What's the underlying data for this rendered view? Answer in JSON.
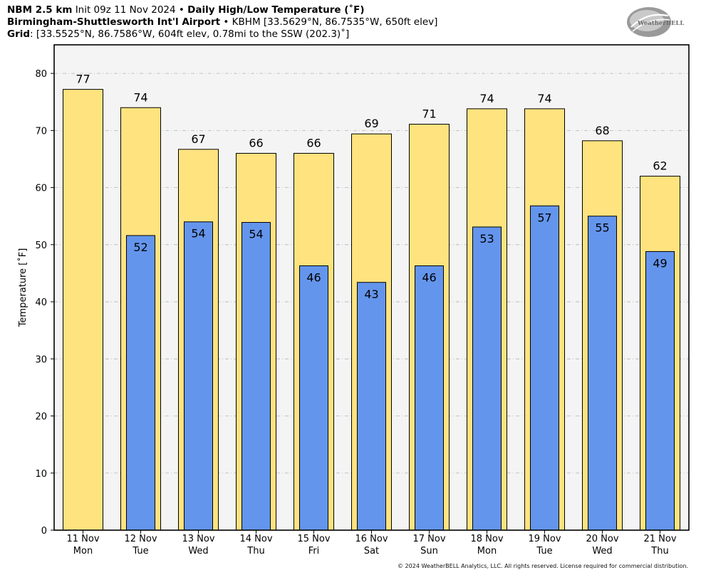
{
  "header": {
    "line1_model": "NBM 2.5 km",
    "line1_init": "Init 09z 11 Nov 2024",
    "line1_sep": "•",
    "line1_product": "Daily High/Low Temperature (˚F)",
    "line2_site": "Birmingham-Shuttlesworth Int'l Airport",
    "line2_sep": "•",
    "line2_info": "KBHM [33.5629°N, 86.7535°W, 650ft elev]",
    "line3_label": "Grid",
    "line3_info": ": [33.5525°N, 86.7586°W, 604ft elev, 0.78mi to the SSW (202.3)˚]"
  },
  "logo": {
    "text": "WeatherBELL"
  },
  "copyright": "© 2024 WeatherBELL Analytics, LLC. All rights reserved. License required for commercial distribution.",
  "chart_data": {
    "type": "bar",
    "title": "Daily High/Low Temperature (˚F)",
    "ylabel": "Temperature [˚F]",
    "xlabel": "",
    "ylim": [
      0,
      85
    ],
    "yticks": [
      0,
      10,
      20,
      30,
      40,
      50,
      60,
      70,
      80
    ],
    "grid": true,
    "categories": [
      {
        "date": "11 Nov",
        "day": "Mon"
      },
      {
        "date": "12 Nov",
        "day": "Tue"
      },
      {
        "date": "13 Nov",
        "day": "Wed"
      },
      {
        "date": "14 Nov",
        "day": "Thu"
      },
      {
        "date": "15 Nov",
        "day": "Fri"
      },
      {
        "date": "16 Nov",
        "day": "Sat"
      },
      {
        "date": "17 Nov",
        "day": "Sun"
      },
      {
        "date": "18 Nov",
        "day": "Mon"
      },
      {
        "date": "19 Nov",
        "day": "Tue"
      },
      {
        "date": "20 Nov",
        "day": "Wed"
      },
      {
        "date": "21 Nov",
        "day": "Thu"
      }
    ],
    "series": [
      {
        "key": "high",
        "color": "#FFE37F",
        "values": [
          77.2,
          74,
          66.7,
          66,
          66,
          69.4,
          71.1,
          73.8,
          73.8,
          68.2,
          62
        ],
        "labels": [
          "77",
          "74",
          "67",
          "66",
          "66",
          "69",
          "71",
          "74",
          "74",
          "68",
          "62"
        ]
      },
      {
        "key": "low",
        "color": "#6495ED",
        "values": [
          null,
          51.6,
          54,
          53.9,
          46.3,
          43.4,
          46.3,
          53.1,
          56.8,
          55,
          48.8
        ],
        "labels": [
          "",
          "52",
          "54",
          "54",
          "46",
          "43",
          "46",
          "53",
          "57",
          "55",
          "49"
        ]
      }
    ],
    "colors": {
      "plot_background": "#F4F4F4",
      "grid": "#B4B4B4",
      "outline": "#000000"
    }
  }
}
